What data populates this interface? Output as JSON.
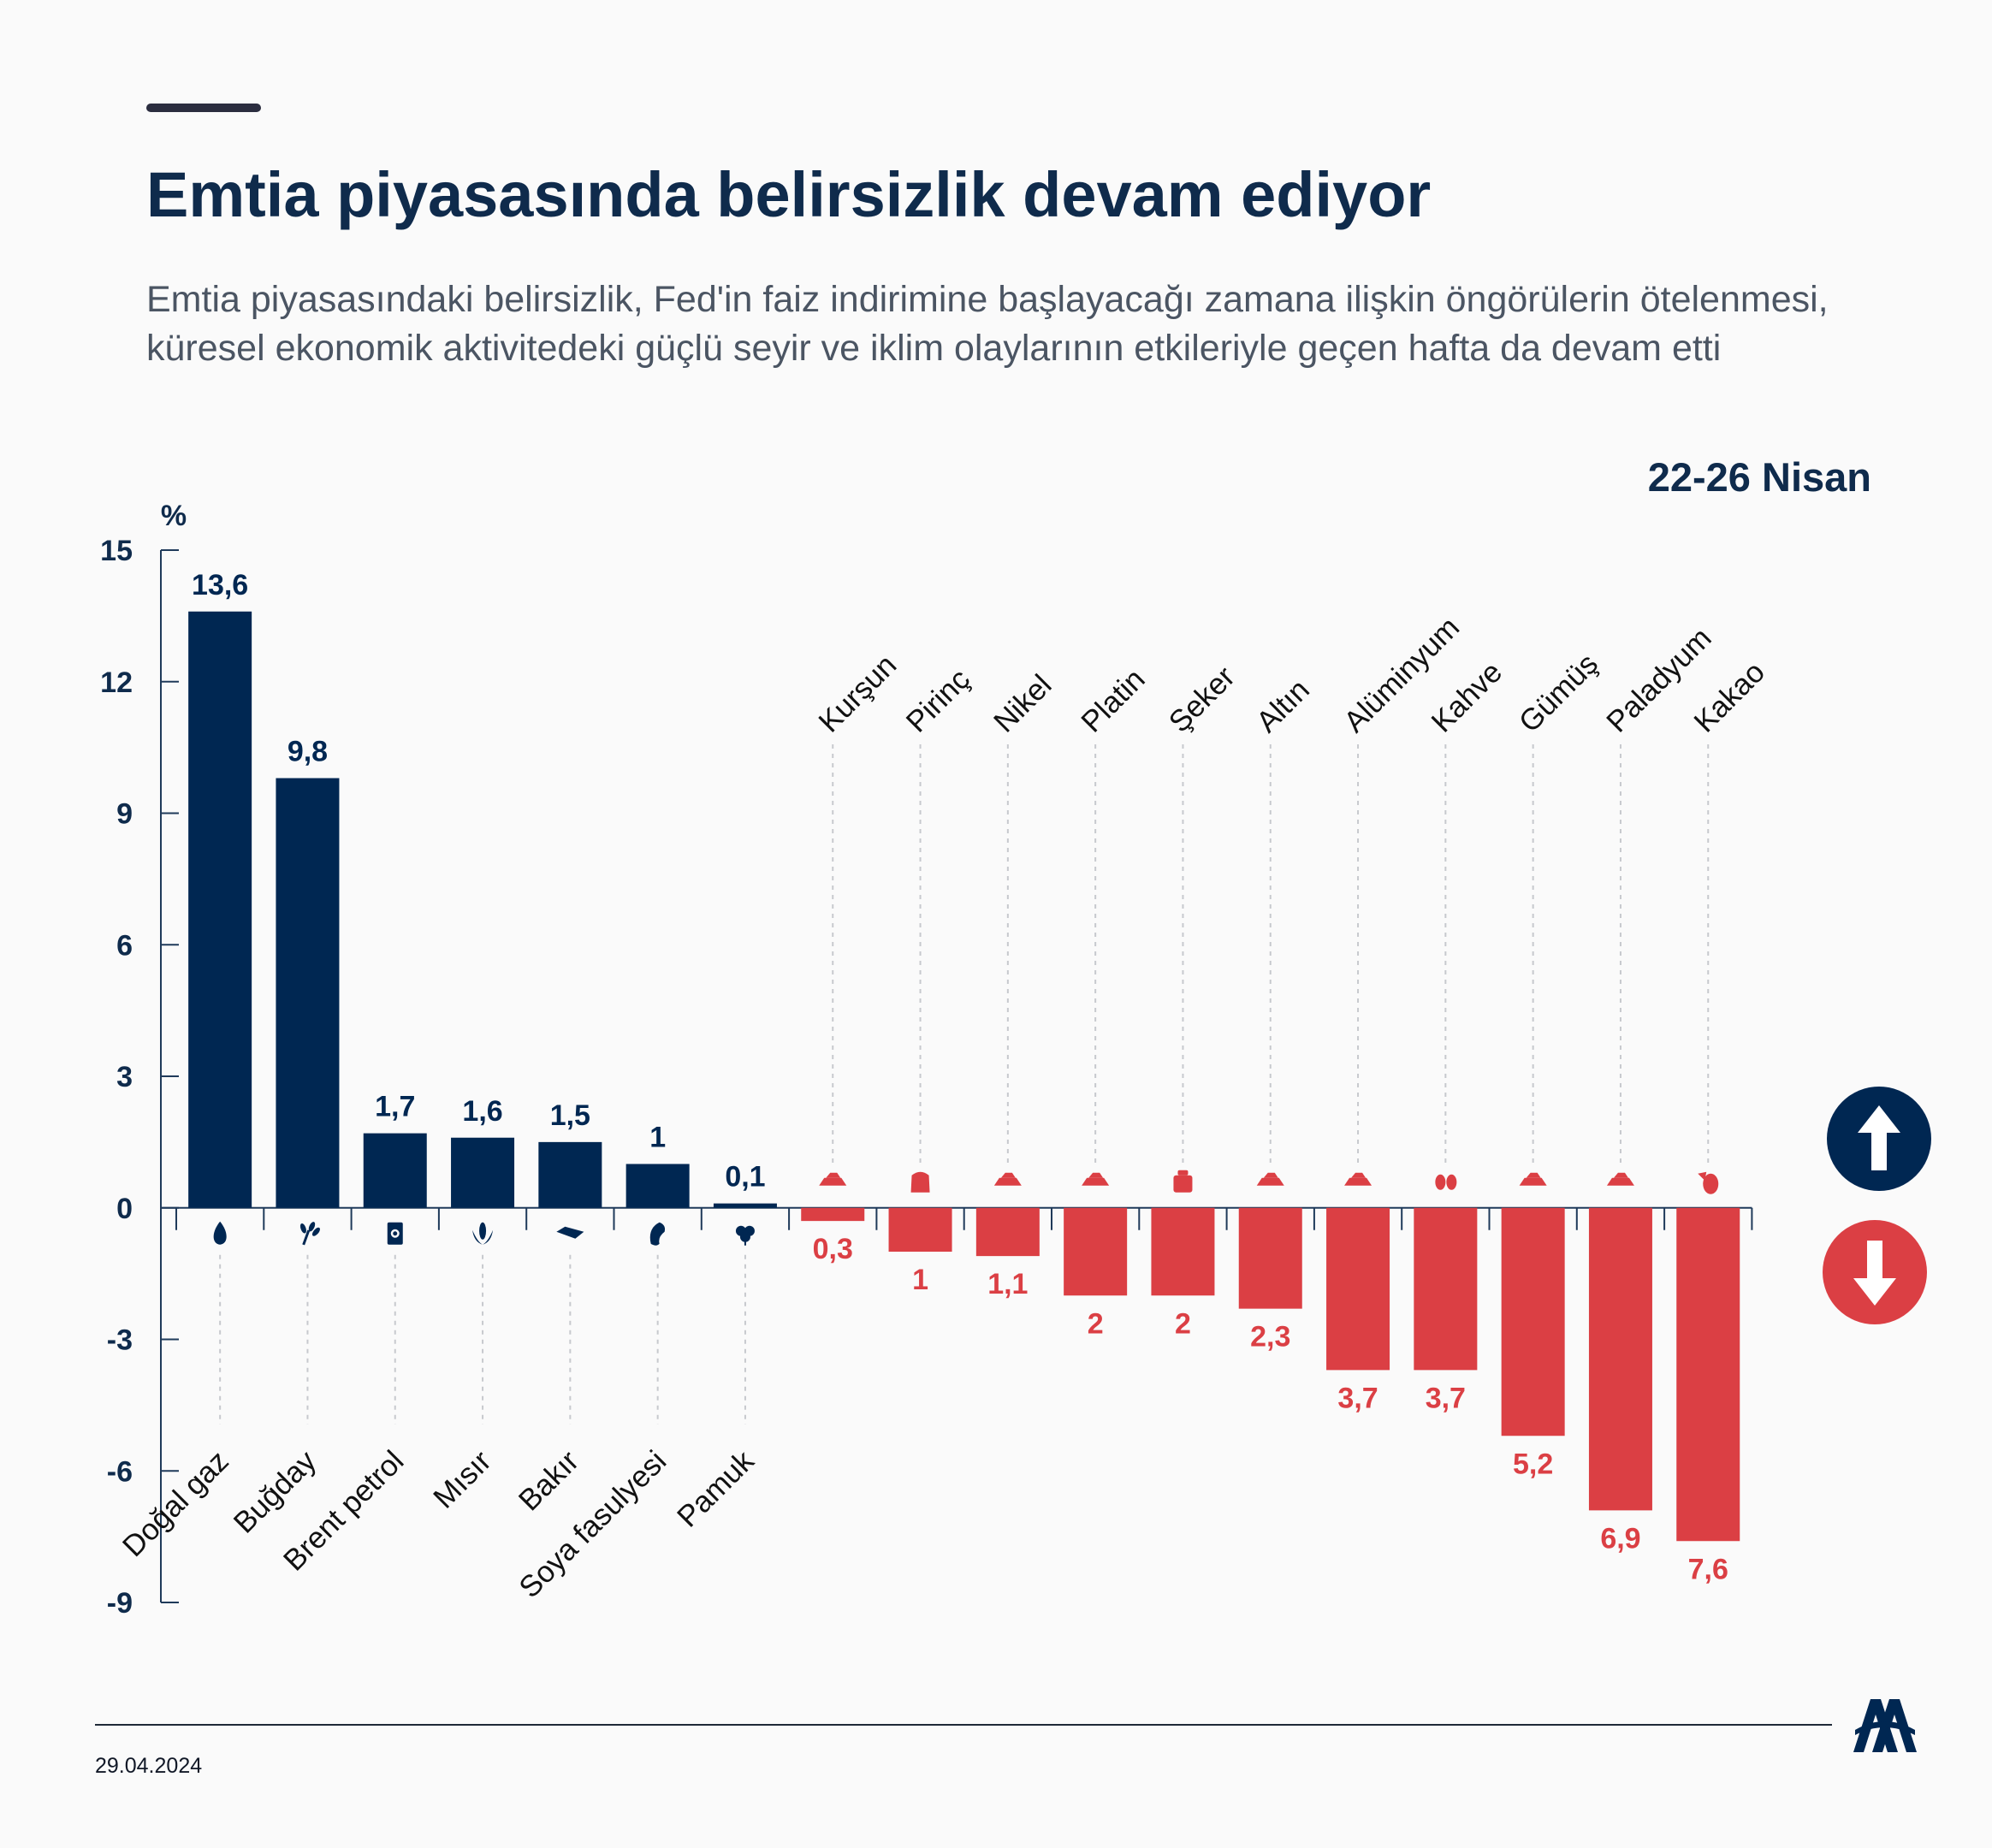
{
  "header": {
    "title": "Emtia piyasasında belirsizlik devam ediyor",
    "subtitle_line1": "Emtia piyasasındaki belirsizlik, Fed'in faiz indirimine başlayacağı zamana ilişkin öngörülerin ötelenmesi,",
    "subtitle_line2": "küresel ekonomik aktivitedeki güçlü seyir ve iklim olaylarının etkileriyle geçen hafta da devam etti",
    "date_range": "22-26 Nisan"
  },
  "footer": {
    "date": "29.04.2024",
    "logo_text": "AA"
  },
  "colors": {
    "positive": "#002752",
    "negative": "#db3f44",
    "text_dark": "#0f2b4c",
    "axis": "#1f3a5a"
  },
  "chart_data": {
    "type": "bar",
    "ylabel": "%",
    "ylim": [
      -9,
      15
    ],
    "yticks": [
      15,
      12,
      9,
      6,
      3,
      0,
      -3,
      -6,
      -9
    ],
    "grid": false,
    "legend": "icons right (up arrow = increase, down arrow = decrease)",
    "series": [
      {
        "name": "Artış",
        "color": "#002752",
        "categories": [
          "Doğal gaz",
          "Buğday",
          "Brent petrol",
          "Mısır",
          "Bakır",
          "Soya fasulyesi",
          "Pamuk"
        ],
        "values": [
          13.6,
          9.8,
          1.7,
          1.6,
          1.5,
          1,
          0.1
        ],
        "labels": [
          "13,6",
          "9,8",
          "1,7",
          "1,6",
          "1,5",
          "1",
          "0,1"
        ],
        "icons": [
          "flame-icon",
          "wheat-icon",
          "oil-barrel-icon",
          "corn-icon",
          "copper-icon",
          "soybean-icon",
          "cotton-icon"
        ]
      },
      {
        "name": "Düşüş",
        "color": "#db3f44",
        "categories": [
          "Kurşun",
          "Pirinç",
          "Nikel",
          "Platin",
          "Şeker",
          "Altın",
          "Alüminyum",
          "Kahve",
          "Gümüş",
          "Paladyum",
          "Kakao"
        ],
        "values": [
          -0.3,
          -1,
          -1.1,
          -2,
          -2,
          -2.3,
          -3.7,
          -3.7,
          -5.2,
          -6.9,
          -7.6
        ],
        "labels": [
          "0,3",
          "1",
          "1,1",
          "2",
          "2",
          "2,3",
          "3,7",
          "3,7",
          "5,2",
          "6,9",
          "7,6"
        ],
        "icons": [
          "metal-ingot-icon",
          "rice-sack-icon",
          "metal-ingot-icon",
          "metal-ingot-icon",
          "sugar-sack-icon",
          "metal-ingot-icon",
          "metal-ingot-icon",
          "coffee-bean-icon",
          "metal-ingot-icon",
          "metal-ingot-icon",
          "cocoa-pod-icon"
        ]
      }
    ]
  }
}
